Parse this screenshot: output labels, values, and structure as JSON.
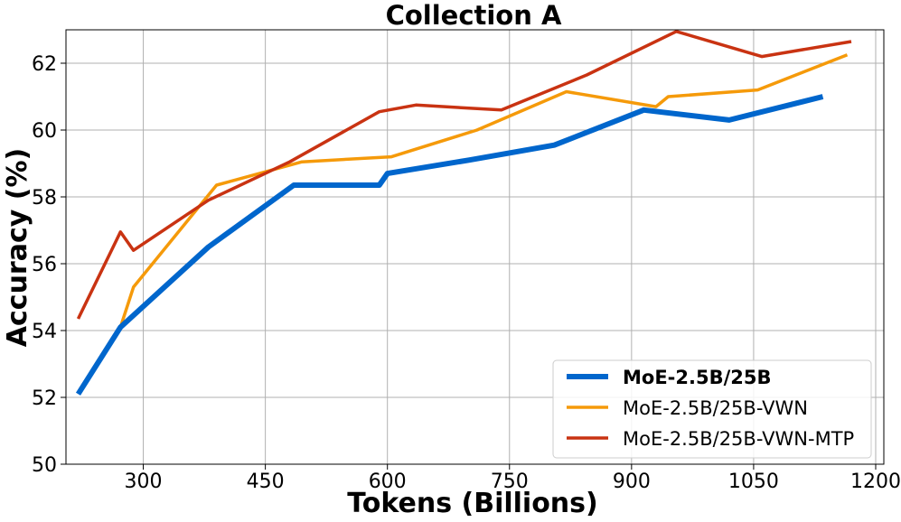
{
  "chart_data": {
    "type": "line",
    "title": "Collection A",
    "xlabel": "Tokens (Billions)",
    "ylabel": "Accuracy (%)",
    "xlim": [
      205,
      1210
    ],
    "ylim": [
      50,
      63
    ],
    "xticks": [
      300,
      450,
      600,
      750,
      900,
      1050,
      1200
    ],
    "yticks": [
      50,
      52,
      54,
      56,
      58,
      60,
      62
    ],
    "grid": true,
    "legend_position": "bottom-right",
    "series": [
      {
        "name": "MoE-2.5B/25B",
        "color": "#0066cc",
        "bold": true,
        "points": [
          [
            220,
            52.1
          ],
          [
            272,
            54.1
          ],
          [
            380,
            56.5
          ],
          [
            485,
            58.35
          ],
          [
            590,
            58.35
          ],
          [
            600,
            58.7
          ],
          [
            700,
            59.1
          ],
          [
            805,
            59.55
          ],
          [
            915,
            60.6
          ],
          [
            1020,
            60.3
          ],
          [
            1135,
            61.0
          ]
        ]
      },
      {
        "name": "MoE-2.5B/25B-VWN",
        "color": "#f59a0a",
        "bold": false,
        "points": [
          [
            272,
            54.1
          ],
          [
            288,
            55.3
          ],
          [
            390,
            58.35
          ],
          [
            495,
            59.05
          ],
          [
            605,
            59.2
          ],
          [
            710,
            60.0
          ],
          [
            820,
            61.15
          ],
          [
            930,
            60.7
          ],
          [
            945,
            61.0
          ],
          [
            1055,
            61.2
          ],
          [
            1165,
            62.25
          ]
        ]
      },
      {
        "name": "MoE-2.5B/25B-VWN-MTP",
        "color": "#c93312",
        "bold": false,
        "points": [
          [
            220,
            54.35
          ],
          [
            272,
            56.95
          ],
          [
            288,
            56.4
          ],
          [
            380,
            57.9
          ],
          [
            480,
            59.05
          ],
          [
            590,
            60.55
          ],
          [
            635,
            60.75
          ],
          [
            740,
            60.6
          ],
          [
            845,
            61.65
          ],
          [
            955,
            62.95
          ],
          [
            1060,
            62.2
          ],
          [
            1170,
            62.65
          ]
        ]
      }
    ]
  }
}
